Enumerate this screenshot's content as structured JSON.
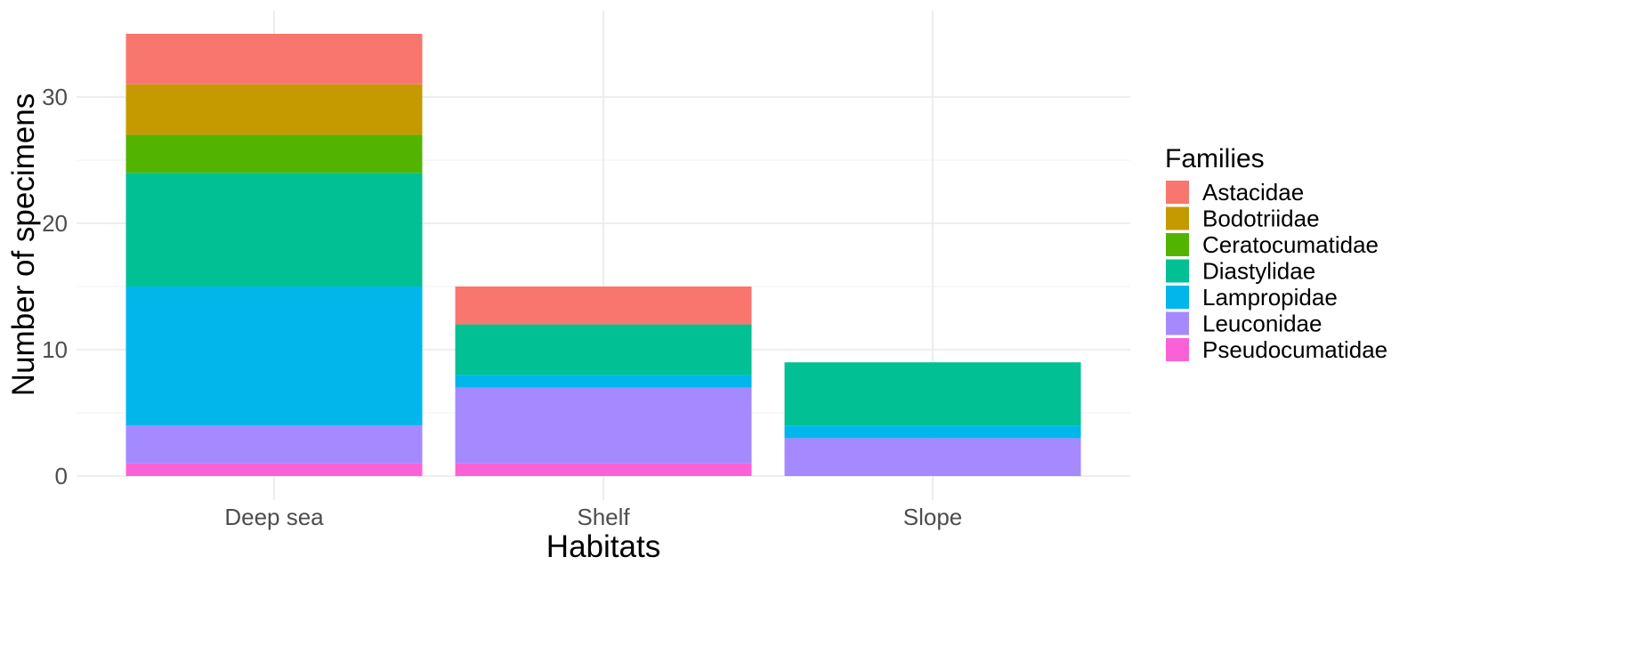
{
  "chart_data": {
    "type": "bar",
    "stacked": true,
    "categories": [
      "Deep sea",
      "Shelf",
      "Slope"
    ],
    "xlabel": "Habitats",
    "ylabel": "Number of specimens",
    "ylim": [
      0,
      35
    ],
    "yticks": [
      0,
      10,
      20,
      30
    ],
    "grid": true,
    "legend": {
      "title": "Families",
      "position": "right"
    },
    "series": [
      {
        "name": "Astacidae",
        "color": "#F8766D",
        "values": [
          4,
          3,
          0
        ]
      },
      {
        "name": "Bodotriidae",
        "color": "#C49A00",
        "values": [
          4,
          0,
          0
        ]
      },
      {
        "name": "Ceratocumatidae",
        "color": "#53B400",
        "values": [
          3,
          0,
          0
        ]
      },
      {
        "name": "Diastylidae",
        "color": "#00C094",
        "values": [
          9,
          4,
          5
        ]
      },
      {
        "name": "Lampropidae",
        "color": "#00B6EB",
        "values": [
          11,
          1,
          1
        ]
      },
      {
        "name": "Leuconidae",
        "color": "#A58AFF",
        "values": [
          3,
          6,
          3
        ]
      },
      {
        "name": "Pseudocumatidae",
        "color": "#FB61D7",
        "values": [
          1,
          1,
          0
        ]
      }
    ]
  }
}
